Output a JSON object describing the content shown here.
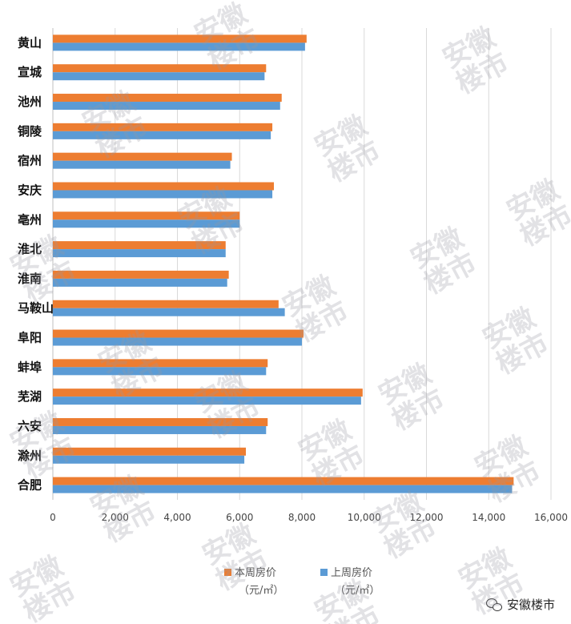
{
  "chart_data": {
    "type": "bar",
    "orientation": "horizontal",
    "categories": [
      "黄山",
      "宣城",
      "池州",
      "铜陵",
      "宿州",
      "安庆",
      "亳州",
      "淮北",
      "淮南",
      "马鞍山",
      "阜阳",
      "蚌埠",
      "芜湖",
      "六安",
      "滁州",
      "合肥"
    ],
    "series": [
      {
        "name": "本周房价",
        "unit": "（元/㎡）",
        "color": "#ed7d31",
        "values": [
          8150,
          6850,
          7350,
          7050,
          5750,
          7100,
          6000,
          5550,
          5650,
          7250,
          8050,
          6900,
          9950,
          6900,
          6200,
          14800
        ]
      },
      {
        "name": "上周房价",
        "unit": "（元/㎡）",
        "color": "#5b9bd5",
        "values": [
          8100,
          6800,
          7300,
          7000,
          5700,
          7050,
          6000,
          5550,
          5600,
          7450,
          8000,
          6850,
          9900,
          6850,
          6150,
          14750
        ]
      }
    ],
    "xlim": [
      0,
      16000
    ],
    "xticks": [
      "0",
      "2,000",
      "4,000",
      "6,000",
      "8,000",
      "10,000",
      "12,000",
      "14,000",
      "16,000"
    ],
    "grid": true,
    "legend": "bottom-center"
  },
  "watermark": {
    "text_line1": "安徽",
    "text_line2": "楼市"
  },
  "brand": {
    "icon": "wechat-icon",
    "label": "安徽楼市"
  }
}
